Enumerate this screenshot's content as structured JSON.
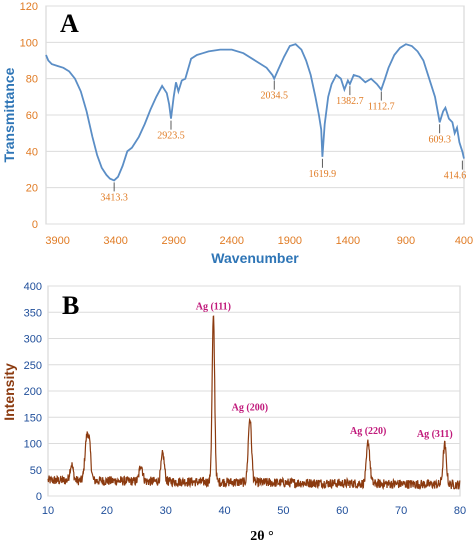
{
  "chart_data": [
    {
      "type": "line",
      "panel": "A",
      "xlabel": "Wavenumber",
      "ylabel": "Transmittance",
      "xlim": [
        4000,
        400
      ],
      "ylim": [
        0,
        120
      ],
      "xticks": [
        "3900",
        "3400",
        "2900",
        "2400",
        "1900",
        "1400",
        "900",
        "400"
      ],
      "yticks": [
        "0",
        "20",
        "40",
        "60",
        "80",
        "100",
        "120"
      ],
      "line_color": "#5b8ec6",
      "series": [
        {
          "x": [
            4000,
            3980,
            3950,
            3900,
            3850,
            3800,
            3750,
            3700,
            3650,
            3600,
            3560,
            3520,
            3480,
            3450,
            3413.3,
            3380,
            3340,
            3300,
            3260,
            3200,
            3150,
            3100,
            3050,
            3000,
            2960,
            2940,
            2923.5,
            2900,
            2880,
            2860,
            2830,
            2800,
            2750,
            2700,
            2650,
            2600,
            2500,
            2400,
            2300,
            2200,
            2100,
            2050,
            2034.5,
            2000,
            1950,
            1900,
            1850,
            1800,
            1760,
            1720,
            1680,
            1650,
            1630,
            1619.9,
            1600,
            1570,
            1540,
            1500,
            1460,
            1430,
            1400,
            1382.7,
            1350,
            1300,
            1250,
            1200,
            1150,
            1112.7,
            1080,
            1050,
            1000,
            950,
            900,
            850,
            800,
            750,
            700,
            650,
            609.3,
            580,
            560,
            530,
            500,
            480,
            460,
            440,
            425,
            414.6,
            400
          ],
          "y": [
            93,
            90,
            88,
            87,
            86,
            84,
            80,
            73,
            62,
            48,
            38,
            31,
            27,
            25,
            24,
            26,
            32,
            40,
            42,
            48,
            55,
            63,
            70,
            76,
            72,
            66,
            58,
            70,
            78,
            73,
            79,
            80,
            91,
            93,
            94,
            95,
            96,
            96,
            94,
            90,
            86,
            82,
            80,
            85,
            92,
            98,
            99,
            96,
            90,
            82,
            70,
            60,
            52,
            37,
            55,
            70,
            77,
            82,
            80,
            74,
            79,
            77,
            82,
            81,
            78,
            80,
            77,
            74,
            80,
            86,
            93,
            97,
            99,
            98,
            95,
            90,
            80,
            70,
            56,
            62,
            64,
            58,
            56,
            50,
            53,
            45,
            42,
            40,
            36
          ]
        }
      ],
      "annotations": [
        {
          "x": 3413.3,
          "y": 24,
          "text": "3413.3"
        },
        {
          "x": 2923.5,
          "y": 58,
          "text": "2923.5"
        },
        {
          "x": 2034.5,
          "y": 80,
          "text": "2034.5"
        },
        {
          "x": 1619.9,
          "y": 37,
          "text": "1619.9"
        },
        {
          "x": 1382.7,
          "y": 77,
          "text": "1382.7"
        },
        {
          "x": 1112.7,
          "y": 74,
          "text": "1112.7"
        },
        {
          "x": 609.3,
          "y": 56,
          "text": "609.3"
        },
        {
          "x": 414.6,
          "y": 36,
          "text": "414.6"
        }
      ]
    },
    {
      "type": "line",
      "panel": "B",
      "xlabel": "2θ °",
      "ylabel": "Intensity",
      "xlim": [
        10,
        80
      ],
      "ylim": [
        0,
        400
      ],
      "xticks": [
        "10",
        "20",
        "30",
        "40",
        "50",
        "60",
        "70",
        "80"
      ],
      "yticks": [
        "0",
        "50",
        "100",
        "150",
        "200",
        "250",
        "300",
        "350",
        "400"
      ],
      "line_color": "#8b3a0f",
      "peaks": [
        {
          "x": 14,
          "y": 60
        },
        {
          "x": 16.5,
          "y": 95
        },
        {
          "x": 17,
          "y": 97
        },
        {
          "x": 25.8,
          "y": 60
        },
        {
          "x": 29.5,
          "y": 80
        },
        {
          "x": 38.1,
          "y": 340
        },
        {
          "x": 44.3,
          "y": 148
        },
        {
          "x": 64.4,
          "y": 103
        },
        {
          "x": 77.4,
          "y": 97
        }
      ],
      "annotations": [
        {
          "x": 38.1,
          "y": 340,
          "text": "Ag (111)"
        },
        {
          "x": 44.3,
          "y": 148,
          "text": "Ag (200)"
        },
        {
          "x": 64.4,
          "y": 103,
          "text": "Ag (220)"
        },
        {
          "x": 77.4,
          "y": 97,
          "text": "Ag (311)"
        }
      ]
    }
  ]
}
